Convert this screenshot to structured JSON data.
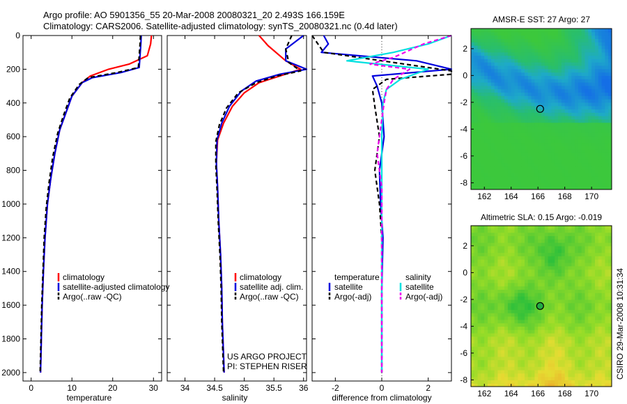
{
  "header": {
    "title_line1": "Argo profile: AO 5901356_55 20-Mar-2008 20080321_20 2.493S 166.159E",
    "title_line2": "Climatology: CARS2006. Satellite-adjusted climatology: synTS_20080321.nc (0.4d later)"
  },
  "colors": {
    "climatology": "#ff0000",
    "satellite": "#0000dd",
    "argo": "#000000",
    "sal_satellite": "#00e0e0",
    "sal_argo": "#ee00ee",
    "sal_climatology": "#ff6600"
  },
  "chart_data": [
    {
      "type": "line",
      "name": "temperature-profile",
      "xlabel": "temperature",
      "ylabel": "",
      "xlim": [
        -2,
        32
      ],
      "ylim": [
        2050,
        0
      ],
      "xticks": [
        0,
        10,
        20,
        30
      ],
      "yticks": [
        0,
        200,
        400,
        600,
        800,
        1000,
        1200,
        1400,
        1600,
        1800,
        2000
      ],
      "legend": [
        "climatology",
        "satellite-adjusted climatology",
        "Argo(..raw -QC)"
      ],
      "legend_location": "lower-left",
      "series": [
        {
          "name": "climatology",
          "color_key": "climatology",
          "x": [
            29.5,
            29.3,
            28.5,
            24,
            19,
            14.5,
            12.5,
            10,
            8.5,
            7,
            5.8,
            4.8,
            4,
            3.4,
            3,
            2.7,
            2.5,
            2.3
          ],
          "y": [
            0,
            50,
            120,
            170,
            200,
            240,
            280,
            360,
            460,
            560,
            700,
            850,
            1000,
            1200,
            1400,
            1600,
            1800,
            2000
          ]
        },
        {
          "name": "satellite-adjusted climatology",
          "color_key": "satellite",
          "x": [
            27,
            26.9,
            26.7,
            26.5,
            22,
            15,
            12.5,
            10,
            8.5,
            7,
            5.8,
            4.8,
            4,
            3.4,
            3,
            2.7,
            2.5,
            2.3
          ],
          "y": [
            0,
            50,
            120,
            190,
            220,
            250,
            280,
            360,
            460,
            560,
            700,
            850,
            1000,
            1200,
            1400,
            1600,
            1800,
            2000
          ]
        },
        {
          "name": "Argo(..raw -QC)",
          "color_key": "argo",
          "dashed": true,
          "x": [
            26.8,
            26.7,
            26.5,
            26.3,
            21,
            14,
            11.8,
            9.5,
            8,
            6.5,
            5.3,
            4.4,
            3.7,
            3.2,
            2.9,
            2.6,
            2.4,
            2.2
          ],
          "y": [
            0,
            50,
            120,
            190,
            220,
            250,
            290,
            370,
            470,
            580,
            720,
            870,
            1020,
            1200,
            1400,
            1600,
            1800,
            2000
          ]
        }
      ]
    },
    {
      "type": "line",
      "name": "salinity-profile",
      "xlabel": "salinity",
      "ylabel": "",
      "xlim": [
        33.7,
        36.05
      ],
      "ylim": [
        2050,
        0
      ],
      "xticks": [
        34,
        34.5,
        35,
        35.5,
        36
      ],
      "legend": [
        "climatology",
        "satellite adj. clim.",
        "Argo(..raw -QC)"
      ],
      "legend_location": "lower-right",
      "annotations": [
        "US ARGO PROJECT",
        "PI: STEPHEN RISER"
      ],
      "series": [
        {
          "name": "climatology",
          "color_key": "climatology",
          "x": [
            35.25,
            35.4,
            35.7,
            35.95,
            35.6,
            35.25,
            35.0,
            34.8,
            34.65,
            34.55,
            34.53,
            34.55,
            34.57,
            34.6,
            34.62,
            34.63,
            34.65,
            34.66
          ],
          "y": [
            0,
            60,
            150,
            200,
            240,
            280,
            340,
            420,
            520,
            620,
            760,
            900,
            1100,
            1300,
            1500,
            1700,
            1900,
            2000
          ]
        },
        {
          "name": "satellite adj. clim.",
          "color_key": "satellite",
          "x": [
            36.0,
            35.7,
            35.7,
            36.05,
            35.6,
            35.2,
            34.95,
            34.75,
            34.62,
            34.54,
            34.53,
            34.55,
            34.57,
            34.6,
            34.62,
            34.63,
            34.65,
            34.66
          ],
          "y": [
            0,
            80,
            150,
            200,
            230,
            270,
            330,
            420,
            520,
            620,
            760,
            900,
            1100,
            1300,
            1500,
            1700,
            1900,
            2000
          ]
        },
        {
          "name": "Argo(..raw -QC)",
          "color_key": "argo",
          "dashed": true,
          "x": [
            35.8,
            35.7,
            35.75,
            35.95,
            35.55,
            35.2,
            34.9,
            34.7,
            34.58,
            34.52,
            34.52,
            34.54,
            34.56,
            34.59,
            34.61,
            34.62,
            34.64,
            34.65
          ],
          "y": [
            0,
            80,
            160,
            210,
            240,
            280,
            340,
            430,
            530,
            630,
            770,
            910,
            1100,
            1300,
            1500,
            1700,
            1900,
            2000
          ]
        }
      ]
    },
    {
      "type": "line",
      "name": "difference-from-climatology",
      "xlabel": "difference from climatology",
      "ylabel": "",
      "xlim": [
        -3.0,
        3.0
      ],
      "ylim": [
        2050,
        0
      ],
      "xticks": [
        -2,
        0,
        2
      ],
      "legend": {
        "temperature_header": "temperature",
        "salinity_header": "salinity",
        "temperature": [
          "satellite",
          "Argo(-adj)"
        ],
        "salinity": [
          "satellite",
          "Argo(-adj)"
        ]
      },
      "series": [
        {
          "name": "temperature satellite",
          "color_key": "satellite",
          "x": [
            -2.5,
            -2.3,
            -2.6,
            1.5,
            3.0,
            -0.4,
            -0.2,
            0,
            0.1,
            -0.1,
            -0.05,
            0.05,
            0,
            0,
            0
          ],
          "y": [
            0,
            50,
            100,
            150,
            200,
            240,
            300,
            400,
            600,
            800,
            1000,
            1200,
            1500,
            1800,
            2000
          ]
        },
        {
          "name": "temperature Argo(-adj)",
          "color_key": "argo",
          "dashed": true,
          "x": [
            -3.0,
            -2.5,
            3.0,
            3.0,
            0.2,
            -0.4,
            -0.3,
            -0.1,
            -0.3,
            -0.1,
            0,
            0,
            0
          ],
          "y": [
            0,
            100,
            210,
            230,
            260,
            320,
            420,
            600,
            800,
            1000,
            1200,
            1500,
            2000
          ]
        },
        {
          "name": "salinity satellite",
          "color_key": "sal_satellite",
          "x": [
            3.0,
            2.0,
            0.5,
            -1.5,
            2.0,
            0.8,
            0.2,
            0.05,
            0,
            0,
            0,
            0
          ],
          "y": [
            0,
            50,
            100,
            150,
            200,
            260,
            320,
            400,
            600,
            1000,
            1500,
            2000
          ]
        },
        {
          "name": "salinity Argo(-adj)",
          "color_key": "sal_argo",
          "dashed": true,
          "x": [
            3.0,
            1.8,
            0.5,
            -0.5,
            1.2,
            0.5,
            0.2,
            0.1,
            -0.2,
            0,
            0
          ],
          "y": [
            0,
            50,
            130,
            170,
            200,
            260,
            320,
            400,
            700,
            900,
            2000
          ]
        }
      ]
    },
    {
      "type": "heatmap",
      "name": "amsr-sst-map",
      "title": "AMSR-E SST: 27  Argo: 27",
      "xlim": [
        161,
        171.5
      ],
      "ylim": [
        -8.5,
        3.5
      ],
      "xticks": [
        162,
        164,
        166,
        168,
        170
      ],
      "yticks": [
        2,
        0,
        -2,
        -4,
        -6,
        -8
      ],
      "marker": {
        "lon": 166.16,
        "lat": -2.49,
        "filled": false
      }
    },
    {
      "type": "heatmap",
      "name": "altimetric-sla-map",
      "title": "Altimetric SLA: 0.15  Argo: -0.019",
      "xlim": [
        161,
        171.5
      ],
      "ylim": [
        -8.5,
        3.5
      ],
      "xticks": [
        162,
        164,
        166,
        168,
        170
      ],
      "yticks": [
        2,
        0,
        -2,
        -4,
        -6,
        -8
      ],
      "marker": {
        "lon": 166.16,
        "lat": -2.49,
        "filled": true
      }
    }
  ],
  "footer": {
    "timestamp": "CSIRO 29-Mar-2008 10:31:34"
  }
}
